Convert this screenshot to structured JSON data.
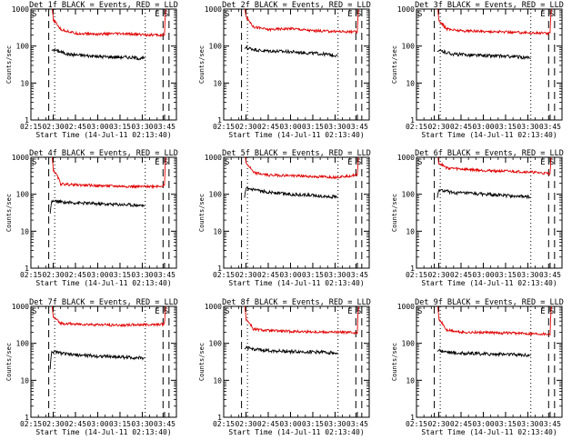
{
  "colors": {
    "events": "#000000",
    "lld": "#e00000",
    "axes": "#000000",
    "background": "#ffffff"
  },
  "shared": {
    "xlabel": "Start Time (14-Jul-11 02:13:40)",
    "ylabel": "Counts/sec",
    "x_tick_labels": [
      "02:15",
      "02:30",
      "02:45",
      "03:00",
      "03:15",
      "03:30",
      "03:45"
    ],
    "x_tick_minutes": [
      15,
      30,
      45,
      60,
      75,
      90,
      105
    ],
    "y_tick_labels": [
      "1",
      "10",
      "100",
      "1000"
    ],
    "y_tick_values": [
      1,
      10,
      100,
      1000
    ],
    "marker_e": "E",
    "marker_s": "S"
  },
  "chart_data": [
    {
      "type": "line",
      "title": "Det 1f BLACK = Events, RED = LLD",
      "xlabel": "Start Time (14-Jul-11 02:13:40)",
      "ylabel": "Counts/sec",
      "x_units": "minutes after 02:00",
      "xlim": [
        15,
        113
      ],
      "ylim": [
        1,
        1000
      ],
      "y_scale": "log",
      "grid": false,
      "series": [
        {
          "name": "Events",
          "color": "#000000",
          "x": [
            29,
            30,
            40,
            60,
            80,
            90,
            92
          ],
          "y": [
            75,
            80,
            60,
            52,
            50,
            46,
            48
          ]
        },
        {
          "name": "LLD",
          "color": "#e00000",
          "x": [
            28,
            30,
            35,
            45,
            60,
            75,
            90,
            105,
            107
          ],
          "y": [
            2000,
            500,
            280,
            220,
            210,
            215,
            205,
            195,
            2000
          ]
        }
      ],
      "dashed_lines_min": [
        27,
        104,
        108
      ],
      "dotted_lines_min": [
        31,
        92
      ]
    },
    {
      "type": "line",
      "title": "Det 2f BLACK = Events, RED = LLD",
      "xlabel": "Start Time (14-Jul-11 02:13:40)",
      "ylabel": "Counts/sec",
      "x_units": "minutes after 02:00",
      "xlim": [
        15,
        113
      ],
      "ylim": [
        1,
        1000
      ],
      "y_scale": "log",
      "grid": false,
      "series": [
        {
          "name": "Events",
          "color": "#000000",
          "x": [
            29,
            30,
            40,
            60,
            80,
            90,
            92
          ],
          "y": [
            85,
            90,
            75,
            70,
            62,
            56,
            58
          ]
        },
        {
          "name": "LLD",
          "color": "#e00000",
          "x": [
            28,
            30,
            35,
            45,
            60,
            75,
            90,
            105,
            107
          ],
          "y": [
            2000,
            600,
            330,
            280,
            300,
            260,
            250,
            240,
            2000
          ]
        }
      ],
      "dashed_lines_min": [
        27,
        104,
        108
      ],
      "dotted_lines_min": [
        31,
        92
      ]
    },
    {
      "type": "line",
      "title": "Det 3f BLACK = Events, RED = LLD",
      "xlabel": "Start Time (14-Jul-11 02:13:40)",
      "ylabel": "Counts/sec",
      "x_units": "minutes after 02:00",
      "xlim": [
        15,
        113
      ],
      "ylim": [
        1,
        1000
      ],
      "y_scale": "log",
      "grid": false,
      "series": [
        {
          "name": "Events",
          "color": "#000000",
          "x": [
            29,
            30,
            40,
            60,
            80,
            90,
            92
          ],
          "y": [
            70,
            75,
            60,
            55,
            52,
            48,
            46
          ]
        },
        {
          "name": "LLD",
          "color": "#e00000",
          "x": [
            28,
            30,
            35,
            45,
            60,
            75,
            90,
            105,
            107
          ],
          "y": [
            2000,
            500,
            290,
            260,
            250,
            240,
            230,
            220,
            2000
          ]
        }
      ],
      "dashed_lines_min": [
        27,
        104,
        108
      ],
      "dotted_lines_min": [
        31,
        92
      ]
    },
    {
      "type": "line",
      "title": "Det 4f BLACK = Events, RED = LLD",
      "xlabel": "Start Time (14-Jul-11 02:13:40)",
      "ylabel": "Counts/sec",
      "x_units": "minutes after 02:00",
      "xlim": [
        15,
        113
      ],
      "ylim": [
        1,
        1000
      ],
      "y_scale": "log",
      "grid": false,
      "series": [
        {
          "name": "Events",
          "color": "#000000",
          "x": [
            28,
            29,
            40,
            60,
            80,
            90,
            92
          ],
          "y": [
            30,
            65,
            60,
            55,
            52,
            50,
            48
          ]
        },
        {
          "name": "LLD",
          "color": "#e00000",
          "x": [
            28,
            30,
            35,
            45,
            60,
            75,
            90,
            105,
            107
          ],
          "y": [
            2000,
            450,
            190,
            180,
            170,
            165,
            160,
            170,
            2000
          ]
        }
      ],
      "dashed_lines_min": [
        27,
        104,
        108
      ],
      "dotted_lines_min": [
        31,
        92
      ]
    },
    {
      "type": "line",
      "title": "Det 5f BLACK = Events, RED = LLD",
      "xlabel": "Start Time (14-Jul-11 02:13:40)",
      "ylabel": "Counts/sec",
      "x_units": "minutes after 02:00",
      "xlim": [
        15,
        113
      ],
      "ylim": [
        1,
        1000
      ],
      "y_scale": "log",
      "grid": false,
      "series": [
        {
          "name": "Events",
          "color": "#000000",
          "x": [
            29,
            30,
            40,
            60,
            80,
            90,
            92
          ],
          "y": [
            80,
            140,
            120,
            100,
            90,
            85,
            82
          ]
        },
        {
          "name": "LLD",
          "color": "#e00000",
          "x": [
            28,
            30,
            35,
            45,
            60,
            75,
            90,
            105,
            107
          ],
          "y": [
            2000,
            700,
            380,
            330,
            320,
            300,
            290,
            330,
            2000
          ]
        }
      ],
      "dashed_lines_min": [
        27,
        104,
        108
      ],
      "dotted_lines_min": [
        31,
        92
      ]
    },
    {
      "type": "line",
      "title": "Det 6f BLACK = Events, RED = LLD",
      "xlabel": "Start Time (14-Jul-11 02:13:40)",
      "ylabel": "Counts/sec",
      "x_units": "minutes after 02:00",
      "xlim": [
        15,
        113
      ],
      "ylim": [
        1,
        1000
      ],
      "y_scale": "log",
      "grid": false,
      "series": [
        {
          "name": "Events",
          "color": "#000000",
          "x": [
            29,
            30,
            40,
            60,
            80,
            90,
            92
          ],
          "y": [
            80,
            130,
            110,
            100,
            90,
            85,
            80
          ]
        },
        {
          "name": "LLD",
          "color": "#e00000",
          "x": [
            28,
            30,
            35,
            45,
            60,
            75,
            90,
            105,
            107
          ],
          "y": [
            2000,
            700,
            520,
            480,
            440,
            420,
            400,
            360,
            2000
          ]
        }
      ],
      "dashed_lines_min": [
        27,
        104,
        108
      ],
      "dotted_lines_min": [
        31,
        92
      ]
    },
    {
      "type": "line",
      "title": "Det 7f BLACK = Events, RED = LLD",
      "xlabel": "Start Time (14-Jul-11 02:13:40)",
      "ylabel": "Counts/sec",
      "x_units": "minutes after 02:00",
      "xlim": [
        15,
        113
      ],
      "ylim": [
        1,
        1000
      ],
      "y_scale": "log",
      "grid": false,
      "series": [
        {
          "name": "Events",
          "color": "#000000",
          "x": [
            28,
            29,
            40,
            60,
            80,
            90,
            92
          ],
          "y": [
            20,
            60,
            50,
            45,
            42,
            40,
            40
          ]
        },
        {
          "name": "LLD",
          "color": "#e00000",
          "x": [
            28,
            30,
            35,
            45,
            60,
            75,
            90,
            105,
            107
          ],
          "y": [
            2000,
            500,
            350,
            330,
            320,
            310,
            320,
            330,
            2000
          ]
        }
      ],
      "dashed_lines_min": [
        27,
        104,
        108
      ],
      "dotted_lines_min": [
        31,
        92
      ]
    },
    {
      "type": "line",
      "title": "Det 8f BLACK = Events, RED = LLD",
      "xlabel": "Start Time (14-Jul-11 02:13:40)",
      "ylabel": "Counts/sec",
      "x_units": "minutes after 02:00",
      "xlim": [
        15,
        113
      ],
      "ylim": [
        1,
        1000
      ],
      "y_scale": "log",
      "grid": false,
      "series": [
        {
          "name": "Events",
          "color": "#000000",
          "x": [
            29,
            30,
            40,
            60,
            80,
            90,
            92
          ],
          "y": [
            70,
            75,
            65,
            60,
            58,
            55,
            54
          ]
        },
        {
          "name": "LLD",
          "color": "#e00000",
          "x": [
            28,
            30,
            35,
            45,
            60,
            75,
            90,
            105,
            107
          ],
          "y": [
            2000,
            450,
            240,
            220,
            210,
            205,
            200,
            195,
            2000
          ]
        }
      ],
      "dashed_lines_min": [
        27,
        104,
        108
      ],
      "dotted_lines_min": [
        31,
        92
      ]
    },
    {
      "type": "line",
      "title": "Det 9f BLACK = Events, RED = LLD",
      "xlabel": "Start Time (14-Jul-11 02:13:40)",
      "ylabel": "Counts/sec",
      "x_units": "minutes after 02:00",
      "xlim": [
        15,
        113
      ],
      "ylim": [
        1,
        1000
      ],
      "y_scale": "log",
      "grid": false,
      "series": [
        {
          "name": "Events",
          "color": "#000000",
          "x": [
            29,
            30,
            40,
            60,
            80,
            90,
            92
          ],
          "y": [
            60,
            65,
            55,
            52,
            50,
            48,
            47
          ]
        },
        {
          "name": "LLD",
          "color": "#e00000",
          "x": [
            28,
            30,
            35,
            45,
            60,
            75,
            90,
            105,
            107
          ],
          "y": [
            2000,
            450,
            230,
            200,
            195,
            190,
            185,
            180,
            2000
          ]
        }
      ],
      "dashed_lines_min": [
        27,
        104,
        108
      ],
      "dotted_lines_min": [
        31,
        92
      ]
    }
  ]
}
